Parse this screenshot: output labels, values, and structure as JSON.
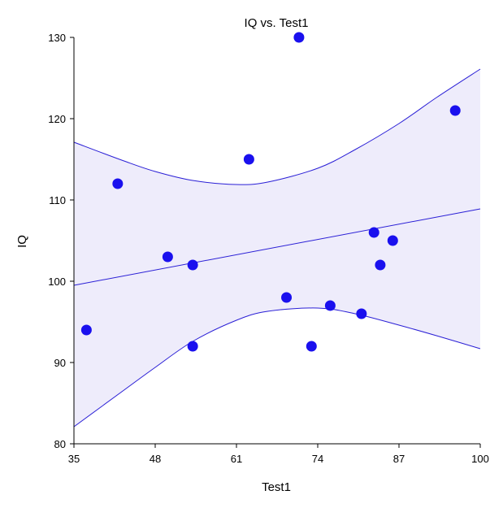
{
  "chart_data": {
    "type": "scatter",
    "title": "IQ vs. Test1",
    "xlabel": "Test1",
    "ylabel": "IQ",
    "xlim": [
      35,
      100
    ],
    "ylim": [
      80,
      130
    ],
    "xticks": [
      35,
      48,
      61,
      74,
      87,
      100
    ],
    "yticks": [
      80,
      90,
      100,
      110,
      120,
      130
    ],
    "grid": false,
    "points": [
      {
        "x": 37,
        "y": 94
      },
      {
        "x": 42,
        "y": 112
      },
      {
        "x": 50,
        "y": 103
      },
      {
        "x": 54,
        "y": 102
      },
      {
        "x": 54,
        "y": 92
      },
      {
        "x": 63,
        "y": 115
      },
      {
        "x": 69,
        "y": 98
      },
      {
        "x": 71,
        "y": 130
      },
      {
        "x": 73,
        "y": 92
      },
      {
        "x": 76,
        "y": 97
      },
      {
        "x": 81,
        "y": 96
      },
      {
        "x": 83,
        "y": 106
      },
      {
        "x": 84,
        "y": 102
      },
      {
        "x": 86,
        "y": 105
      },
      {
        "x": 96,
        "y": 121
      }
    ],
    "regression_line": {
      "x": [
        35,
        100
      ],
      "y": [
        99.5,
        108.9
      ]
    },
    "prediction_band": {
      "x": [
        35,
        43,
        48,
        54,
        61,
        66,
        74,
        80,
        87,
        93,
        100
      ],
      "upper": [
        117.1,
        114.8,
        113.5,
        112.4,
        111.9,
        112.2,
        113.9,
        116.2,
        119.4,
        122.6,
        126.1
      ],
      "lower": [
        82.1,
        86.6,
        89.4,
        92.6,
        95.2,
        96.3,
        96.7,
        96.0,
        94.6,
        93.3,
        91.7
      ]
    },
    "colors": {
      "point": "#1a10ee",
      "line": "#2a1fd6",
      "band_fill": "#eeecfb",
      "axis": "#000000"
    }
  }
}
